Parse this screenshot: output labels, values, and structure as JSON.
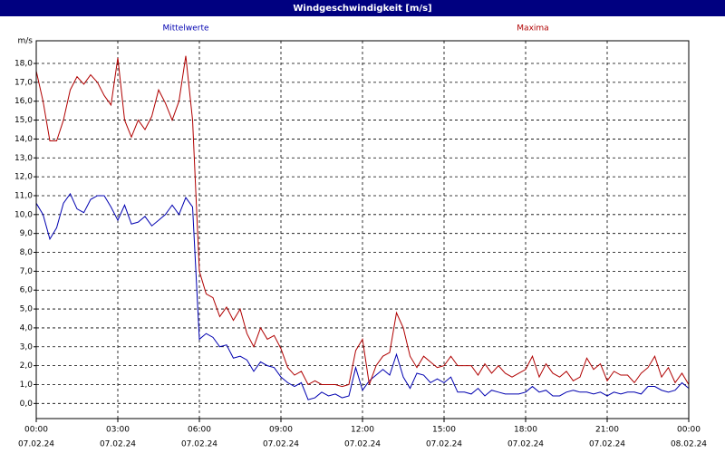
{
  "chart_data": {
    "type": "line",
    "title": "Windgeschwindigkeit [m/s]",
    "y_label": "m/s",
    "x": [
      0,
      0.25,
      0.5,
      0.75,
      1,
      1.25,
      1.5,
      1.75,
      2,
      2.25,
      2.5,
      2.75,
      3,
      3.25,
      3.5,
      3.75,
      4,
      4.25,
      4.5,
      4.75,
      5,
      5.25,
      5.5,
      5.75,
      6,
      6.25,
      6.5,
      6.75,
      7,
      7.25,
      7.5,
      7.75,
      8,
      8.25,
      8.5,
      8.75,
      9,
      9.25,
      9.5,
      9.75,
      10,
      10.25,
      10.5,
      10.75,
      11,
      11.25,
      11.5,
      11.75,
      12,
      12.25,
      12.5,
      12.75,
      13,
      13.25,
      13.5,
      13.75,
      14,
      14.25,
      14.5,
      14.75,
      15,
      15.25,
      15.5,
      15.75,
      16,
      16.25,
      16.5,
      16.75,
      17,
      17.25,
      17.5,
      17.75,
      18,
      18.25,
      18.5,
      18.75,
      19,
      19.25,
      19.5,
      19.75,
      20,
      20.25,
      20.5,
      20.75,
      21,
      21.25,
      21.5,
      21.75,
      22,
      22.25,
      22.5,
      22.75,
      23,
      23.25,
      23.5,
      23.75,
      24
    ],
    "series": [
      {
        "name": "Mittelwerte",
        "color": "#0000b0",
        "values": [
          10.6,
          10.0,
          8.7,
          9.3,
          10.6,
          11.1,
          10.3,
          10.1,
          10.8,
          11.0,
          11.0,
          10.4,
          9.7,
          10.5,
          9.5,
          9.6,
          9.9,
          9.4,
          9.7,
          10.0,
          10.5,
          10.0,
          10.9,
          10.4,
          3.4,
          3.7,
          3.5,
          3.0,
          3.1,
          2.4,
          2.5,
          2.3,
          1.7,
          2.2,
          2.0,
          1.9,
          1.4,
          1.1,
          0.9,
          1.1,
          0.2,
          0.3,
          0.6,
          0.4,
          0.5,
          0.3,
          0.4,
          1.9,
          0.7,
          1.2,
          1.5,
          1.8,
          1.5,
          2.6,
          1.4,
          0.8,
          1.6,
          1.5,
          1.1,
          1.3,
          1.1,
          1.4,
          0.6,
          0.6,
          0.5,
          0.8,
          0.4,
          0.7,
          0.6,
          0.5,
          0.5,
          0.5,
          0.6,
          0.9,
          0.6,
          0.7,
          0.4,
          0.4,
          0.6,
          0.7,
          0.6,
          0.6,
          0.5,
          0.6,
          0.4,
          0.6,
          0.5,
          0.6,
          0.6,
          0.5,
          0.9,
          0.9,
          0.7,
          0.6,
          0.7,
          1.1,
          0.8
        ]
      },
      {
        "name": "Maxima",
        "color": "#b00000",
        "values": [
          17.6,
          16.0,
          13.9,
          13.9,
          15.0,
          16.6,
          17.3,
          16.9,
          17.4,
          17.0,
          16.3,
          15.8,
          18.3,
          15.0,
          14.1,
          15.0,
          14.5,
          15.2,
          16.6,
          15.9,
          15.0,
          16.0,
          18.4,
          15.0,
          7.0,
          5.8,
          5.6,
          4.6,
          5.1,
          4.4,
          5.0,
          3.7,
          3.0,
          4.0,
          3.4,
          3.6,
          2.9,
          1.9,
          1.5,
          1.7,
          1.0,
          1.2,
          1.0,
          1.0,
          1.0,
          0.9,
          1.0,
          2.8,
          3.4,
          1.0,
          2.0,
          2.5,
          2.7,
          4.8,
          4.0,
          2.5,
          1.9,
          2.5,
          2.2,
          1.9,
          2.0,
          2.5,
          2.0,
          2.0,
          2.0,
          1.5,
          2.1,
          1.6,
          2.0,
          1.6,
          1.4,
          1.6,
          1.8,
          2.5,
          1.4,
          2.1,
          1.6,
          1.4,
          1.7,
          1.2,
          1.4,
          2.4,
          1.8,
          2.1,
          1.2,
          1.7,
          1.5,
          1.5,
          1.1,
          1.6,
          1.9,
          2.5,
          1.4,
          1.9,
          1.1,
          1.6,
          1.0
        ]
      }
    ],
    "xlim": [
      0,
      24
    ],
    "xticks": [
      {
        "value": 0,
        "label": "00:00"
      },
      {
        "value": 3,
        "label": "03:00"
      },
      {
        "value": 6,
        "label": "06:00"
      },
      {
        "value": 9,
        "label": "09:00"
      },
      {
        "value": 12,
        "label": "12:00"
      },
      {
        "value": 15,
        "label": "15:00"
      },
      {
        "value": 18,
        "label": "18:00"
      },
      {
        "value": 21,
        "label": "21:00"
      },
      {
        "value": 24,
        "label": "00:00"
      }
    ],
    "xtick_dates": [
      "07.02.24",
      "07.02.24",
      "07.02.24",
      "07.02.24",
      "07.02.24",
      "07.02.24",
      "07.02.24",
      "07.02.24",
      "08.02.24"
    ],
    "ylim": [
      -0.8,
      19.2
    ],
    "yticks": [
      {
        "value": 0,
        "label": "0,0"
      },
      {
        "value": 1,
        "label": "1,0"
      },
      {
        "value": 2,
        "label": "2,0"
      },
      {
        "value": 3,
        "label": "3,0"
      },
      {
        "value": 4,
        "label": "4,0"
      },
      {
        "value": 5,
        "label": "5,0"
      },
      {
        "value": 6,
        "label": "6,0"
      },
      {
        "value": 7,
        "label": "7,0"
      },
      {
        "value": 8,
        "label": "8,0"
      },
      {
        "value": 9,
        "label": "9,0"
      },
      {
        "value": 10,
        "label": "10,0"
      },
      {
        "value": 11,
        "label": "11,0"
      },
      {
        "value": 12,
        "label": "12,0"
      },
      {
        "value": 13,
        "label": "13,0"
      },
      {
        "value": 14,
        "label": "14,0"
      },
      {
        "value": 15,
        "label": "15,0"
      },
      {
        "value": 16,
        "label": "16,0"
      },
      {
        "value": 17,
        "label": "17,0"
      },
      {
        "value": 18,
        "label": "18,0"
      }
    ],
    "grid": true
  }
}
